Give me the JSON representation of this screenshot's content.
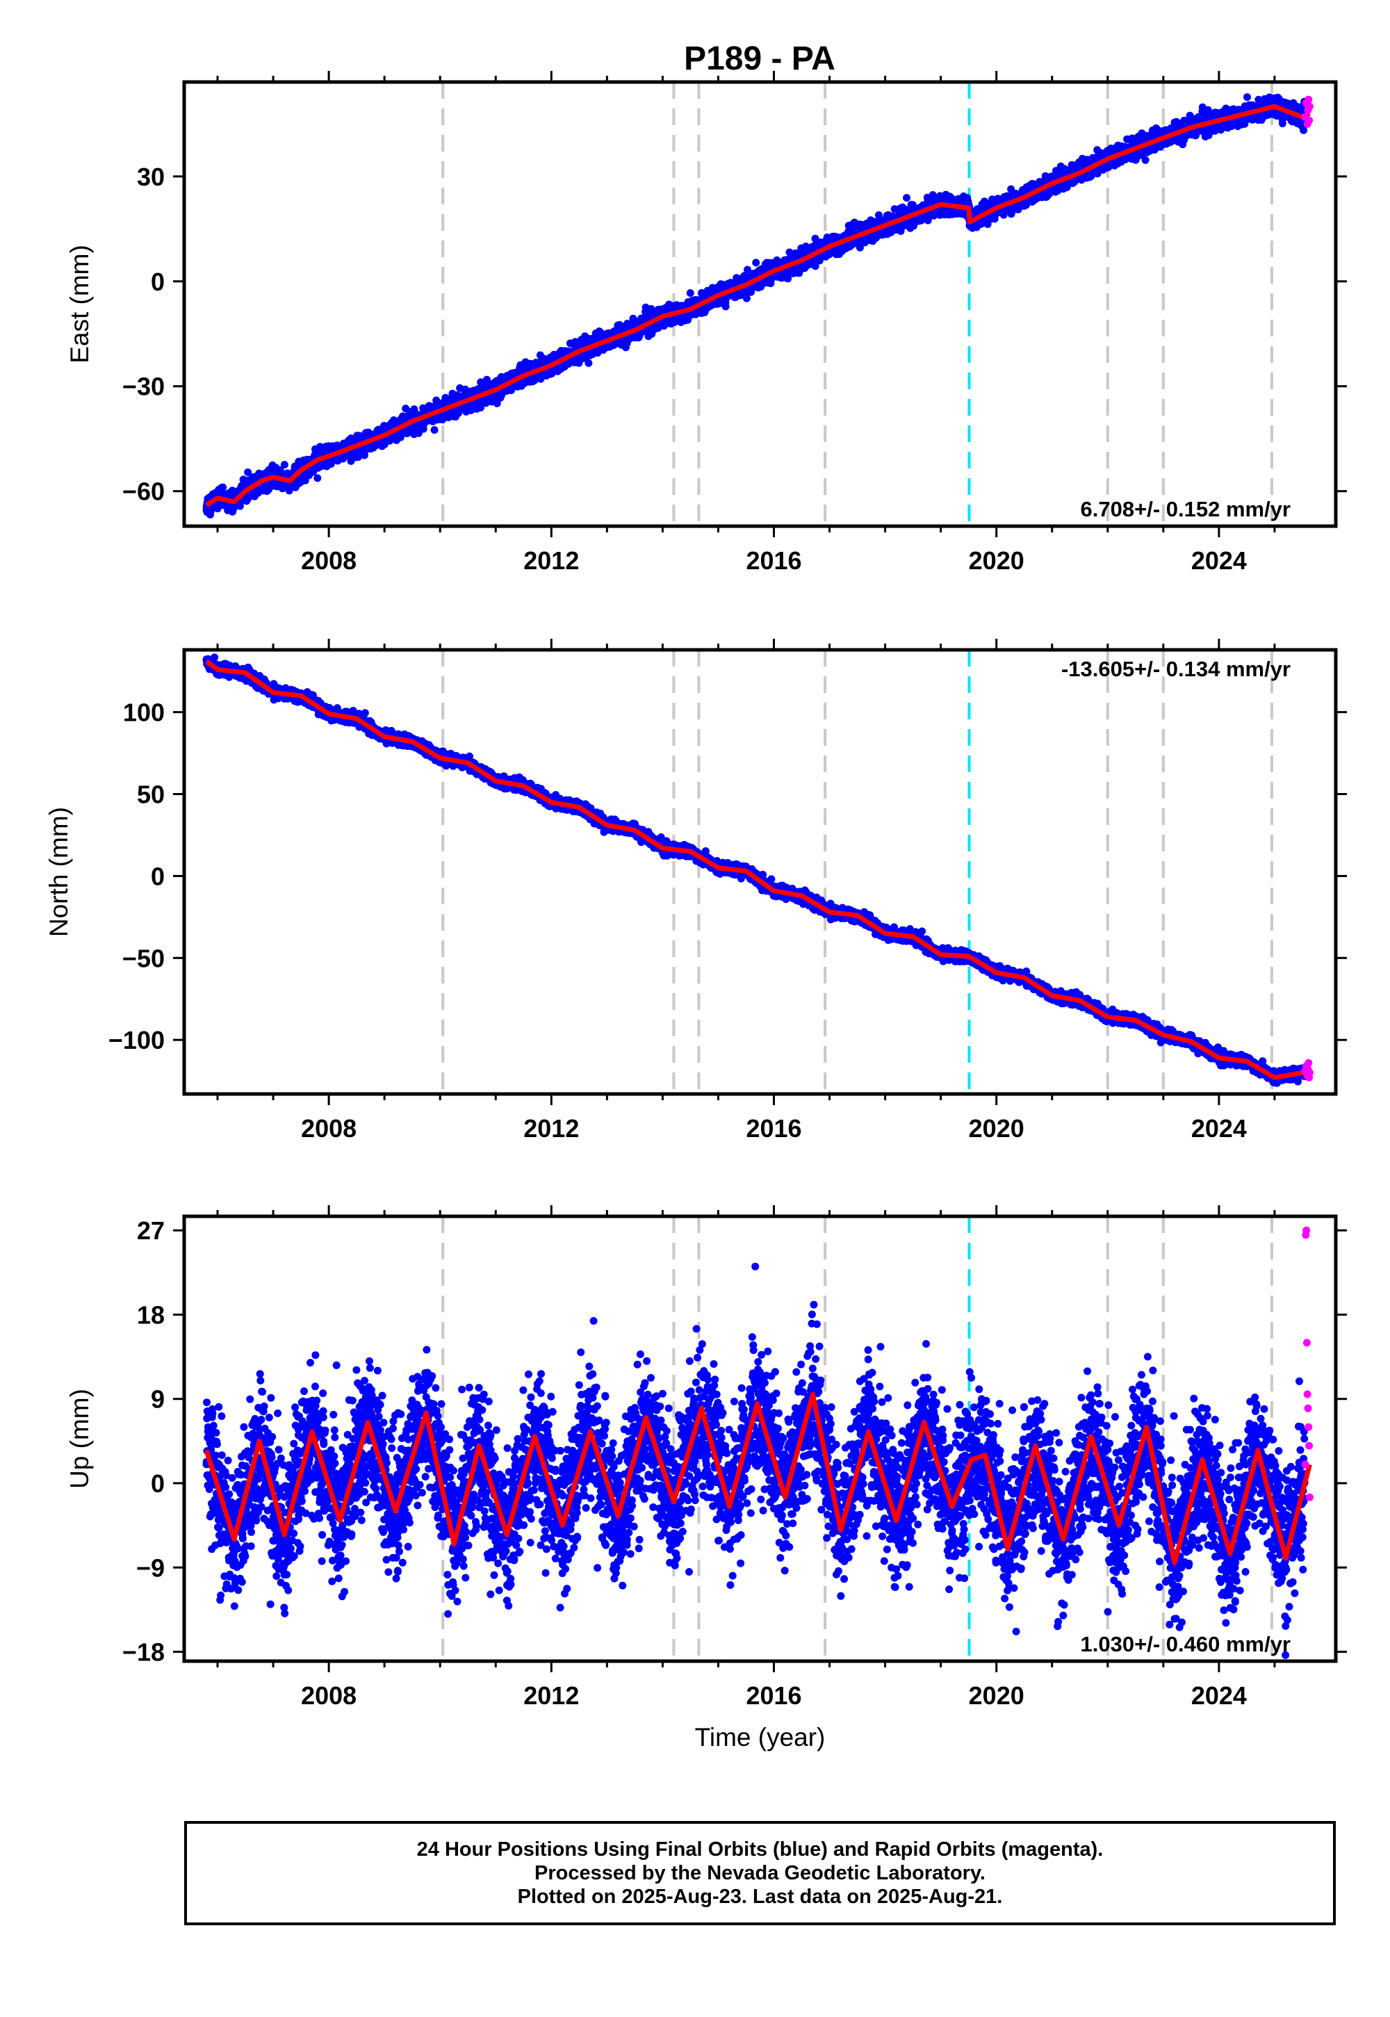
{
  "title": "P189 - PA",
  "colors": {
    "final": "#0000ff",
    "rapid": "#ff00ff",
    "model": "#ff0000",
    "event_gray": "#c8c8c8",
    "event_cyan": "#00e5ff"
  },
  "chart_data": [
    {
      "type": "scatter",
      "component": "east",
      "ylabel": "East (mm)",
      "xlabel": "",
      "xlim": [
        2005.4,
        2026.1
      ],
      "ylim": [
        -70,
        57
      ],
      "yticks": [
        -60,
        -30,
        0,
        30
      ],
      "xticks": [
        2008,
        2012,
        2016,
        2020,
        2024
      ],
      "rate_label": "6.708+/- 0.152 mm/yr",
      "rate_position": "bottom-right",
      "rate": 6.708,
      "series": [
        {
          "name": "",
          "role": "model",
          "x": [
            2005.8,
            2006.0,
            2006.3,
            2006.5,
            2006.8,
            2007.0,
            2007.3,
            2007.5,
            2007.8,
            2008.0,
            2008.5,
            2009.0,
            2009.5,
            2010.0,
            2010.5,
            2011.0,
            2011.5,
            2012.0,
            2012.5,
            2013.0,
            2013.5,
            2014.0,
            2014.5,
            2015.0,
            2015.5,
            2016.0,
            2016.5,
            2017.0,
            2017.5,
            2018.0,
            2018.5,
            2019.0,
            2019.5,
            2019.52,
            2020.0,
            2020.5,
            2021.0,
            2021.5,
            2022.0,
            2022.5,
            2023.0,
            2023.5,
            2024.0,
            2024.5,
            2025.0,
            2025.5,
            2025.63
          ],
          "y": [
            -64,
            -62,
            -63,
            -60,
            -57,
            -56,
            -57,
            -54,
            -51,
            -50,
            -47,
            -44,
            -40,
            -37,
            -34,
            -31,
            -27,
            -24,
            -20,
            -17,
            -14,
            -10,
            -8,
            -4,
            -1,
            3,
            6,
            10,
            13,
            16,
            19,
            22,
            21,
            17,
            21,
            24,
            28,
            31,
            35,
            38,
            41,
            44,
            46,
            48,
            50,
            47,
            48
          ]
        },
        {
          "name": "",
          "role": "rapid",
          "x": [
            2025.55,
            2025.57,
            2025.59,
            2025.6,
            2025.61,
            2025.62,
            2025.63
          ],
          "y": [
            47,
            51,
            45,
            49,
            52,
            46,
            50
          ]
        }
      ]
    },
    {
      "type": "scatter",
      "component": "north",
      "ylabel": "North (mm)",
      "xlabel": "",
      "xlim": [
        2005.4,
        2026.1
      ],
      "ylim": [
        -133,
        138
      ],
      "yticks": [
        -100,
        -50,
        0,
        50,
        100
      ],
      "xticks": [
        2008,
        2012,
        2016,
        2020,
        2024
      ],
      "rate_label": "-13.605+/- 0.134 mm/yr",
      "rate_position": "top-right",
      "rate": -13.605,
      "series": [
        {
          "name": "",
          "role": "model",
          "x": [
            2005.8,
            2006.0,
            2006.5,
            2007.0,
            2007.5,
            2008.0,
            2008.5,
            2009.0,
            2009.5,
            2010.0,
            2010.5,
            2011.0,
            2011.5,
            2012.0,
            2012.5,
            2013.0,
            2013.5,
            2014.0,
            2014.5,
            2015.0,
            2015.5,
            2016.0,
            2016.5,
            2017.0,
            2017.5,
            2018.0,
            2018.5,
            2019.0,
            2019.5,
            2020.0,
            2020.5,
            2021.0,
            2021.5,
            2022.0,
            2022.5,
            2023.0,
            2023.5,
            2024.0,
            2024.5,
            2025.0,
            2025.5,
            2025.63
          ],
          "y": [
            131,
            126,
            124,
            112,
            110,
            99,
            96,
            85,
            82,
            72,
            69,
            58,
            55,
            45,
            42,
            31,
            28,
            17,
            15,
            5,
            3,
            -9,
            -12,
            -22,
            -24,
            -35,
            -37,
            -48,
            -49,
            -59,
            -62,
            -73,
            -76,
            -86,
            -88,
            -97,
            -101,
            -111,
            -113,
            -123,
            -120,
            -121
          ]
        },
        {
          "name": "",
          "role": "rapid",
          "x": [
            2025.55,
            2025.57,
            2025.59,
            2025.6,
            2025.61,
            2025.62,
            2025.63
          ],
          "y": [
            -119,
            -116,
            -122,
            -118,
            -114,
            -123,
            -120
          ]
        }
      ]
    },
    {
      "type": "scatter",
      "component": "up",
      "ylabel": "Up (mm)",
      "xlabel": "Time (year)",
      "xlim": [
        2005.4,
        2026.1
      ],
      "ylim": [
        -19,
        28.5
      ],
      "yticks": [
        -18,
        -9,
        0,
        9,
        18,
        27
      ],
      "xticks": [
        2008,
        2012,
        2016,
        2020,
        2024
      ],
      "rate_label": "1.030+/- 0.460 mm/yr",
      "rate_position": "bottom-right",
      "rate": 1.03,
      "series": [
        {
          "name": "",
          "role": "model",
          "x": [
            2005.8,
            2006.3,
            2006.75,
            2007.2,
            2007.7,
            2008.2,
            2008.7,
            2009.2,
            2009.75,
            2010.25,
            2010.7,
            2011.2,
            2011.7,
            2012.2,
            2012.7,
            2013.2,
            2013.7,
            2014.2,
            2014.7,
            2015.2,
            2015.7,
            2016.2,
            2016.7,
            2017.2,
            2017.7,
            2018.2,
            2018.7,
            2019.2,
            2019.55,
            2019.8,
            2020.2,
            2020.7,
            2021.2,
            2021.7,
            2022.2,
            2022.7,
            2023.2,
            2023.7,
            2024.2,
            2024.7,
            2025.2,
            2025.63
          ],
          "y": [
            3.5,
            -6,
            4.5,
            -5.5,
            5.5,
            -4,
            6.5,
            -3,
            7.5,
            -6.5,
            4,
            -5.5,
            5,
            -4.5,
            5.5,
            -3.5,
            7,
            -2,
            8,
            -2.5,
            8.5,
            -1.5,
            9.5,
            -5,
            5.5,
            -4,
            6.5,
            -2.5,
            2.5,
            3,
            -7,
            4,
            -6,
            5,
            -4.5,
            6,
            -8.5,
            2.5,
            -7.5,
            3.5,
            -8,
            2
          ]
        },
        {
          "name": "",
          "role": "rapid",
          "x": [
            2025.55,
            2025.56,
            2025.57,
            2025.58,
            2025.59,
            2025.6,
            2025.61,
            2025.62,
            2025.63
          ],
          "y": [
            2,
            26.5,
            27,
            15,
            9.5,
            8,
            6,
            4,
            -1.5
          ]
        }
      ]
    }
  ],
  "events": {
    "gray": [
      2010.05,
      2014.2,
      2014.65,
      2016.92,
      2022.0,
      2023.0,
      2024.95
    ],
    "cyan": [
      2019.51
    ]
  },
  "caption": {
    "line1": "24 Hour Positions Using Final Orbits (blue) and Rapid Orbits (magenta).",
    "line2": "Processed by the Nevada Geodetic Laboratory.",
    "line3": "Plotted on 2025-Aug-23. Last data on 2025-Aug-21."
  }
}
